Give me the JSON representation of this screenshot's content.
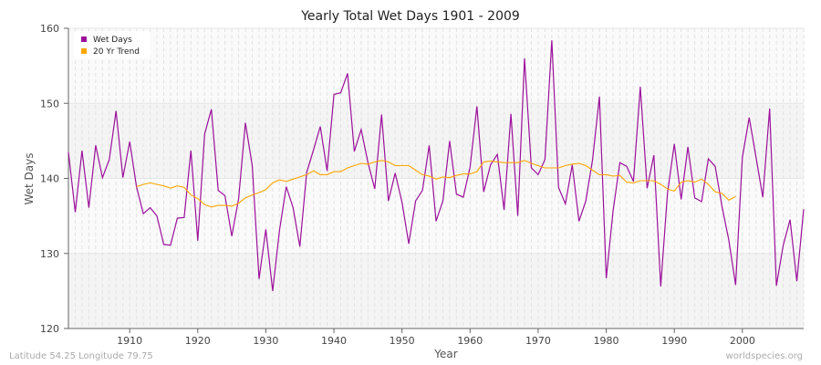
{
  "chart_data": {
    "type": "line",
    "title": "Yearly Total Wet Days 1901 - 2009",
    "xlabel": "Year",
    "ylabel": "Wet Days",
    "xlim": [
      1901,
      2009
    ],
    "ylim": [
      120,
      160
    ],
    "x_ticks": [
      1910,
      1920,
      1930,
      1940,
      1950,
      1960,
      1970,
      1980,
      1990,
      2000
    ],
    "y_ticks": [
      120,
      130,
      140,
      150,
      160
    ],
    "grid": true,
    "legend_position": "top-left",
    "series": [
      {
        "name": "Wet Days",
        "color": "#9b0f9b",
        "start_year": 1901,
        "values": [
          143.5,
          135.5,
          143.7,
          136.1,
          144.4,
          140.1,
          142.5,
          149.0,
          140.1,
          144.9,
          138.9,
          135.3,
          136.1,
          135.0,
          131.2,
          131.1,
          134.7,
          134.8,
          143.7,
          131.7,
          145.9,
          149.2,
          138.4,
          137.7,
          132.3,
          137.3,
          147.4,
          141.7,
          126.6,
          133.2,
          125.0,
          133.1,
          138.9,
          136.1,
          130.9,
          140.8,
          143.8,
          146.9,
          141.0,
          151.2,
          151.4,
          154.0,
          143.6,
          146.5,
          142.1,
          138.6,
          148.5,
          137.0,
          140.7,
          136.8,
          131.3,
          137.0,
          138.4,
          144.4,
          134.3,
          137.0,
          145.0,
          137.9,
          137.5,
          141.5,
          149.6,
          138.2,
          141.8,
          143.2,
          135.8,
          148.6,
          135.0,
          156.0,
          141.4,
          140.5,
          142.5,
          158.4,
          138.8,
          136.6,
          141.8,
          134.3,
          137.0,
          142.5,
          150.9,
          126.7,
          135.6,
          142.1,
          141.6,
          139.6,
          152.2,
          138.7,
          143.1,
          125.6,
          138.0,
          144.6,
          137.2,
          144.2,
          137.4,
          136.9,
          142.6,
          141.6,
          136.3,
          131.8,
          125.8,
          142.8,
          148.1,
          142.8,
          137.5,
          149.3,
          125.7,
          131.1,
          134.5,
          126.3,
          135.9
        ]
      },
      {
        "name": "20 Yr Trend",
        "color": "#ffa500",
        "start_year": 1911,
        "values": [
          138.9,
          139.2,
          139.4,
          139.2,
          139.0,
          138.7,
          139.0,
          138.8,
          137.8,
          137.3,
          136.5,
          136.2,
          136.4,
          136.4,
          136.3,
          136.7,
          137.4,
          137.8,
          138.1,
          138.5,
          139.4,
          139.8,
          139.6,
          139.9,
          140.2,
          140.5,
          141.0,
          140.5,
          140.5,
          140.9,
          140.9,
          141.4,
          141.7,
          142.0,
          141.9,
          142.2,
          142.4,
          142.2,
          141.7,
          141.7,
          141.7,
          141.1,
          140.5,
          140.3,
          139.9,
          140.2,
          140.1,
          140.4,
          140.6,
          140.6,
          140.9,
          142.2,
          142.3,
          142.2,
          142.1,
          142.1,
          142.1,
          142.4,
          142.0,
          141.7,
          141.4,
          141.4,
          141.4,
          141.7,
          141.9,
          142.0,
          141.7,
          141.1,
          140.5,
          140.5,
          140.3,
          140.4,
          139.5,
          139.4,
          139.7,
          139.7,
          139.7,
          139.2,
          138.6,
          138.3,
          139.5,
          139.7,
          139.5,
          139.9,
          139.2,
          138.2,
          138.0,
          137.1,
          137.6
        ]
      }
    ]
  },
  "footer": {
    "location": "Latitude 54.25 Longitude 79.75",
    "source": "worldspecies.org"
  }
}
